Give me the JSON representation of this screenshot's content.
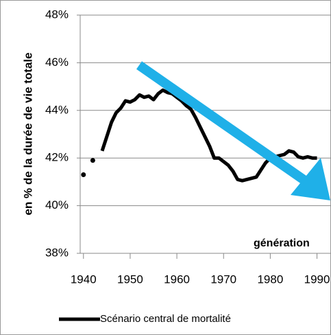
{
  "chart_data": {
    "type": "line",
    "y_axis_label": "en % de la durée de vie totale",
    "annotation": "génération",
    "x": [
      1940,
      1941,
      1942,
      1943,
      1944,
      1945,
      1946,
      1947,
      1948,
      1949,
      1950,
      1951,
      1952,
      1953,
      1954,
      1955,
      1956,
      1957,
      1958,
      1959,
      1960,
      1961,
      1962,
      1963,
      1964,
      1965,
      1966,
      1967,
      1968,
      1969,
      1970,
      1971,
      1972,
      1973,
      1974,
      1975,
      1976,
      1977,
      1978,
      1979,
      1980,
      1981,
      1982,
      1983,
      1984,
      1985,
      1986,
      1987,
      1988,
      1989,
      1990
    ],
    "series": [
      {
        "name": "Scénario central de mortalité",
        "color": "#000000",
        "values": [
          41.3,
          null,
          41.9,
          null,
          42.3,
          42.9,
          43.5,
          43.9,
          44.1,
          44.4,
          44.35,
          44.45,
          44.65,
          44.55,
          44.6,
          44.45,
          44.7,
          44.85,
          44.75,
          44.7,
          44.55,
          44.4,
          44.2,
          44.05,
          43.7,
          43.3,
          42.9,
          42.5,
          42.0,
          42.0,
          41.85,
          41.7,
          41.45,
          41.1,
          41.05,
          41.1,
          41.15,
          41.2,
          41.5,
          41.8,
          42.0,
          42.05,
          42.1,
          42.15,
          42.3,
          42.25,
          42.05,
          42.0,
          42.05,
          42.0,
          42.0
        ]
      }
    ],
    "xlim": [
      1939.3,
      1993
    ],
    "xticks": [
      1940,
      1950,
      1960,
      1970,
      1980,
      1990
    ],
    "ylim": [
      38,
      48
    ],
    "yticks": [
      {
        "value": 38,
        "label": "38%"
      },
      {
        "value": 40,
        "label": "40%"
      },
      {
        "value": 42,
        "label": "42%"
      },
      {
        "value": 44,
        "label": "44%"
      },
      {
        "value": 46,
        "label": "46%"
      },
      {
        "value": 48,
        "label": "48%"
      }
    ],
    "grid": true,
    "legend": "bottom"
  }
}
